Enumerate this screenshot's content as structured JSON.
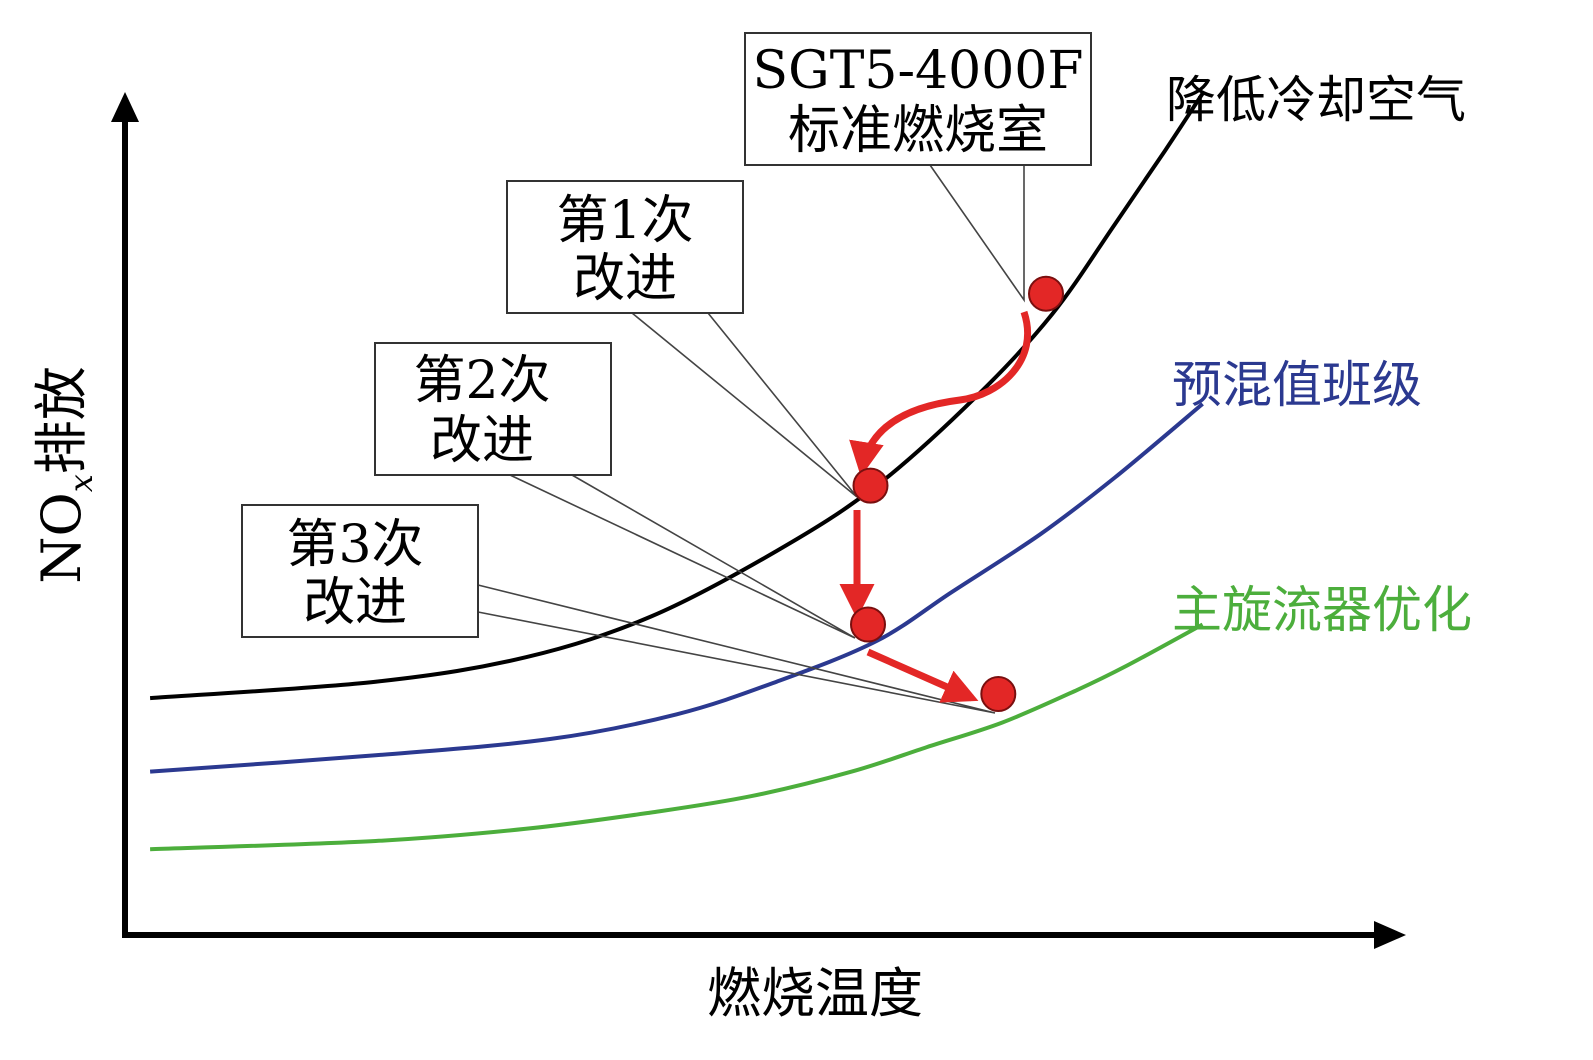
{
  "chart_data": {
    "type": "line",
    "title": "",
    "xlabel": "燃烧温度",
    "ylabel_main": "NO",
    "ylabel_sub": "x",
    "ylabel_tail": "排放",
    "series": [
      {
        "name": "降低冷却空气",
        "color": "#000000",
        "points": [
          [
            0.02,
            0.29
          ],
          [
            0.2,
            0.31
          ],
          [
            0.32,
            0.34
          ],
          [
            0.42,
            0.39
          ],
          [
            0.52,
            0.47
          ],
          [
            0.6,
            0.55
          ],
          [
            0.68,
            0.66
          ],
          [
            0.74,
            0.76
          ],
          [
            0.79,
            0.87
          ],
          [
            0.83,
            0.96
          ],
          [
            0.86,
            1.03
          ]
        ]
      },
      {
        "name": "预混值班级",
        "color": "#2b3990",
        "points": [
          [
            0.02,
            0.2
          ],
          [
            0.2,
            0.22
          ],
          [
            0.34,
            0.24
          ],
          [
            0.44,
            0.27
          ],
          [
            0.52,
            0.31
          ],
          [
            0.6,
            0.36
          ],
          [
            0.66,
            0.42
          ],
          [
            0.73,
            0.49
          ],
          [
            0.79,
            0.56
          ],
          [
            0.86,
            0.65
          ]
        ]
      },
      {
        "name": "主旋流器优化",
        "color": "#4cae3c",
        "points": [
          [
            0.02,
            0.105
          ],
          [
            0.2,
            0.115
          ],
          [
            0.32,
            0.13
          ],
          [
            0.42,
            0.15
          ],
          [
            0.5,
            0.17
          ],
          [
            0.58,
            0.2
          ],
          [
            0.64,
            0.23
          ],
          [
            0.7,
            0.26
          ],
          [
            0.76,
            0.3
          ],
          [
            0.8,
            0.33
          ],
          [
            0.86,
            0.38
          ]
        ]
      }
    ],
    "improvement_points": [
      {
        "id": "baseline",
        "x": 0.735,
        "y": 0.785
      },
      {
        "id": "step1",
        "x": 0.595,
        "y": 0.55
      },
      {
        "id": "step2",
        "x": 0.593,
        "y": 0.38
      },
      {
        "id": "step3",
        "x": 0.697,
        "y": 0.295
      }
    ],
    "callouts": [
      {
        "id": "baseline",
        "lines": [
          "SGT5-4000F",
          "标准燃烧室"
        ]
      },
      {
        "id": "step1",
        "lines": [
          "第1次",
          "改进"
        ]
      },
      {
        "id": "step2",
        "lines": [
          "第2次",
          "改进"
        ]
      },
      {
        "id": "step3",
        "lines": [
          "第3次",
          "改进"
        ]
      }
    ],
    "xlim": [
      0,
      1
    ],
    "ylim": [
      0,
      1
    ],
    "grid": false,
    "marker_color": "#e32726",
    "arrow_color": "#e32726"
  }
}
